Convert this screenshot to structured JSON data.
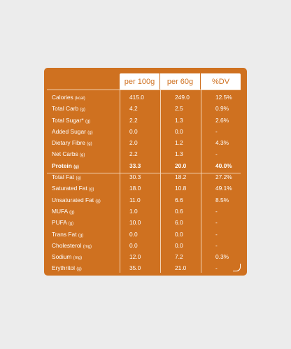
{
  "header": {
    "col1": "per 100g",
    "col2": "per 60g",
    "col3": "%DV"
  },
  "rows": [
    {
      "name": "Calories",
      "unit": "(kcal)",
      "v100": "415.0",
      "v60": "249.0",
      "dv": "12.5%"
    },
    {
      "name": "Total Carb",
      "unit": "(g)",
      "v100": "4.2",
      "v60": "2.5",
      "dv": "0.9%"
    },
    {
      "name": "Total Sugar*",
      "unit": "(g)",
      "v100": "2.2",
      "v60": "1.3",
      "dv": "2.6%"
    },
    {
      "name": "Added Sugar",
      "unit": "(g)",
      "v100": "0.0",
      "v60": "0.0",
      "dv": "-"
    },
    {
      "name": "Dietary Fibre",
      "unit": "(g)",
      "v100": "2.0",
      "v60": "1.2",
      "dv": "4.3%"
    },
    {
      "name": "Net Carbs",
      "unit": "(g)",
      "v100": "2.2",
      "v60": "1.3",
      "dv": "-"
    },
    {
      "name": "Protein",
      "unit": "(g)",
      "v100": "33.3",
      "v60": "20.0",
      "dv": "40.0%",
      "bold": true
    },
    {
      "name": "Total Fat",
      "unit": "(g)",
      "v100": "30.3",
      "v60": "18.2",
      "dv": "27.2%"
    },
    {
      "name": "Saturated Fat",
      "unit": "(g)",
      "v100": "18.0",
      "v60": "10.8",
      "dv": "49.1%"
    },
    {
      "name": "Unsaturated Fat",
      "unit": "(g)",
      "v100": "11.0",
      "v60": "6.6",
      "dv": "8.5%"
    },
    {
      "name": "MUFA",
      "unit": "(g)",
      "v100": "1.0",
      "v60": "0.6",
      "dv": "-"
    },
    {
      "name": "PUFA",
      "unit": "(g)",
      "v100": "10.0",
      "v60": "6.0",
      "dv": "-"
    },
    {
      "name": "Trans Fat",
      "unit": "(g)",
      "v100": "0.0",
      "v60": "0.0",
      "dv": "-"
    },
    {
      "name": "Cholesterol",
      "unit": "(mg)",
      "v100": "0.0",
      "v60": "0.0",
      "dv": "-"
    },
    {
      "name": "Sodium",
      "unit": "(mg)",
      "v100": "12.0",
      "v60": "7.2",
      "dv": "0.3%"
    },
    {
      "name": "Erythritol",
      "unit": "(g)",
      "v100": "35.0",
      "v60": "21.0",
      "dv": "-"
    }
  ]
}
